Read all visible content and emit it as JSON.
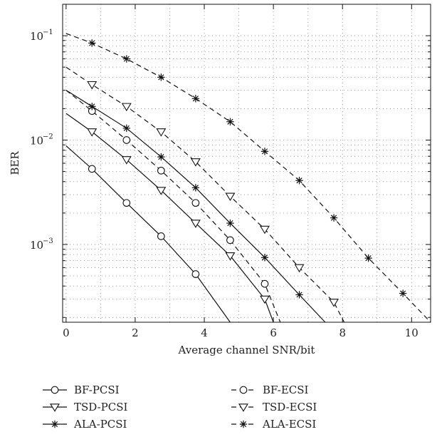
{
  "chart_data": {
    "type": "line",
    "xlabel": "Average channel SNR/bit",
    "ylabel": "BER",
    "xlim": [
      -0.1,
      10.55
    ],
    "ylim": [
      0.00018,
      0.2
    ],
    "y_scale": "log",
    "x_ticks": [
      0,
      2,
      4,
      6,
      8,
      10
    ],
    "y_ticks": [
      {
        "value": 0.1,
        "label": "10",
        "exp": "−1"
      },
      {
        "value": 0.01,
        "label": "10",
        "exp": "−2"
      },
      {
        "value": 0.001,
        "label": "10",
        "exp": "−3"
      }
    ],
    "grid": true,
    "legend_position": "bottom",
    "series": [
      {
        "name": "BF-PCSI",
        "line": "solid",
        "marker": "circle",
        "x": [
          0,
          0.75,
          1.75,
          2.75,
          3.75,
          4.75
        ],
        "y": [
          0.0088,
          0.0053,
          0.0025,
          0.0012,
          0.00052,
          0.00018
        ]
      },
      {
        "name": "BF-ECSI",
        "line": "dashed",
        "marker": "circle",
        "x": [
          0,
          0.75,
          1.75,
          2.75,
          3.75,
          4.75,
          5.75,
          6.2
        ],
        "y": [
          0.03,
          0.019,
          0.01,
          0.0051,
          0.0025,
          0.0011,
          0.00042,
          0.00018
        ]
      },
      {
        "name": "TSD-PCSI",
        "line": "solid",
        "marker": "triangle-down",
        "x": [
          0,
          0.75,
          1.75,
          2.75,
          3.75,
          4.75,
          5.75,
          6.0
        ],
        "y": [
          0.018,
          0.012,
          0.0065,
          0.0033,
          0.0016,
          0.00078,
          0.0003,
          0.00018
        ]
      },
      {
        "name": "TSD-ECSI",
        "line": "dashed",
        "marker": "triangle-down",
        "x": [
          0,
          0.75,
          1.75,
          2.75,
          3.75,
          4.75,
          5.75,
          6.75,
          7.75,
          8.05
        ],
        "y": [
          0.05,
          0.034,
          0.021,
          0.012,
          0.0062,
          0.0029,
          0.0014,
          0.0006,
          0.00028,
          0.00018
        ]
      },
      {
        "name": "ALA-PCSI",
        "line": "solid",
        "marker": "star",
        "x": [
          0,
          0.75,
          1.75,
          2.75,
          3.75,
          4.75,
          5.75,
          6.75,
          7.5
        ],
        "y": [
          0.03,
          0.021,
          0.013,
          0.0069,
          0.0035,
          0.0016,
          0.00075,
          0.00033,
          0.00018
        ]
      },
      {
        "name": "ALA-ECSI",
        "line": "dashed",
        "marker": "star",
        "x": [
          0,
          0.75,
          1.75,
          2.75,
          3.75,
          4.75,
          5.75,
          6.75,
          7.75,
          8.75,
          9.75,
          10.55
        ],
        "y": [
          0.105,
          0.085,
          0.06,
          0.04,
          0.025,
          0.015,
          0.0078,
          0.0041,
          0.0018,
          0.00074,
          0.00034,
          0.00018
        ]
      }
    ]
  }
}
